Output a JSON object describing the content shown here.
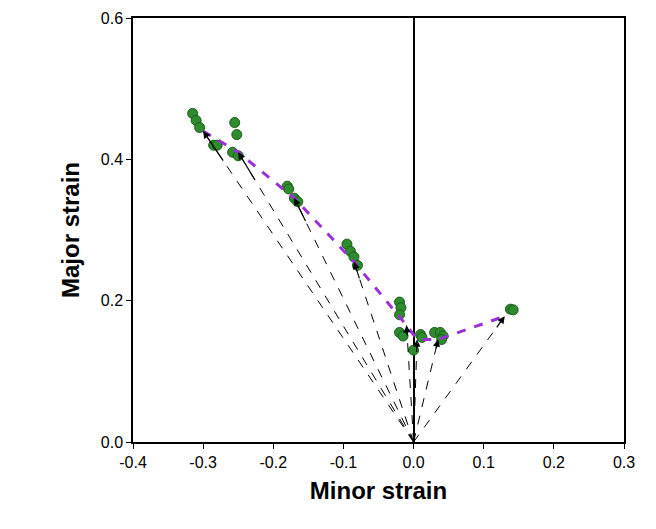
{
  "chart_data": {
    "type": "scatter",
    "x_label": "Minor strain",
    "y_label": "Major strain",
    "xlim": [
      -0.4,
      0.3
    ],
    "ylim": [
      0,
      0.6
    ],
    "xticks": [
      -0.4,
      -0.3,
      -0.2,
      -0.1,
      {
        "value": 0,
        "label": "0.0"
      },
      0.1,
      0.2,
      0.3
    ],
    "yticks": [
      {
        "value": 0,
        "label": "0.0"
      },
      0.2,
      0.4,
      0.6
    ],
    "grid": false,
    "series": [
      {
        "type": "scatter",
        "color": "#2e8b2e",
        "marker": "circle",
        "x": [
          -0.315,
          -0.31,
          -0.305,
          -0.285,
          -0.28,
          -0.255,
          -0.252,
          -0.258,
          -0.25,
          -0.18,
          -0.178,
          -0.17,
          -0.165,
          -0.095,
          -0.09,
          -0.085,
          -0.08,
          -0.02,
          -0.018,
          -0.02,
          -0.02,
          -0.015,
          0.0,
          0.01,
          0.012,
          0.03,
          0.038,
          0.042,
          0.04,
          0.138,
          0.142
        ],
        "values": [
          0.465,
          0.455,
          0.445,
          0.42,
          0.42,
          0.452,
          0.435,
          0.41,
          0.405,
          0.362,
          0.358,
          0.345,
          0.34,
          0.28,
          0.27,
          0.262,
          0.25,
          0.198,
          0.19,
          0.18,
          0.155,
          0.15,
          0.13,
          0.152,
          0.148,
          0.155,
          0.155,
          0.15,
          0.145,
          0.188,
          0.187
        ]
      },
      {
        "type": "line",
        "color": "#9b30d9",
        "line_style": "dash",
        "x": [
          -0.3,
          -0.25,
          -0.17,
          -0.085,
          -0.01,
          0.005,
          0.035,
          0.13
        ],
        "values": [
          0.44,
          0.41,
          0.345,
          0.255,
          0.165,
          0.145,
          0.145,
          0.178
        ]
      },
      {
        "type": "arrows",
        "color": "#000000",
        "line_style": "dash",
        "origin": [
          0,
          0
        ],
        "x": [
          -0.3,
          -0.25,
          -0.17,
          -0.085,
          -0.01,
          0.005,
          0.035,
          0.13
        ],
        "values": [
          0.44,
          0.41,
          0.345,
          0.255,
          0.165,
          0.145,
          0.145,
          0.178
        ]
      }
    ]
  }
}
